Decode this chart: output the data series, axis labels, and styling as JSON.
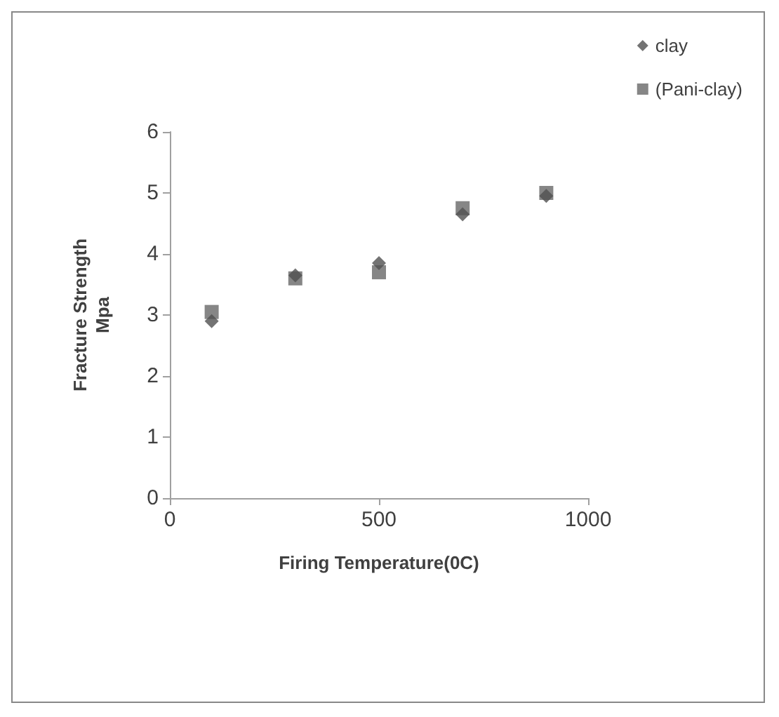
{
  "chart_data": {
    "type": "scatter",
    "xlabel": "Firing Temperature(0C)",
    "ylabel": "Fracture Strength\nMpa",
    "x": [
      100,
      300,
      500,
      700,
      900
    ],
    "series": [
      {
        "name": "clay",
        "color": "#505050",
        "marker": "diamond",
        "values": [
          2.9,
          3.65,
          3.85,
          4.65,
          4.95
        ]
      },
      {
        "name": "(Pani-clay)",
        "color": "#686868",
        "marker": "square",
        "values": [
          3.05,
          3.6,
          3.7,
          4.75,
          5.0
        ]
      }
    ],
    "xlim": [
      0,
      1000
    ],
    "xticks": [
      0,
      500,
      1000
    ],
    "ylim": [
      0,
      6
    ],
    "yticks": [
      0,
      1,
      2,
      3,
      4,
      5,
      6
    ],
    "grid": false,
    "legend": "top right"
  }
}
